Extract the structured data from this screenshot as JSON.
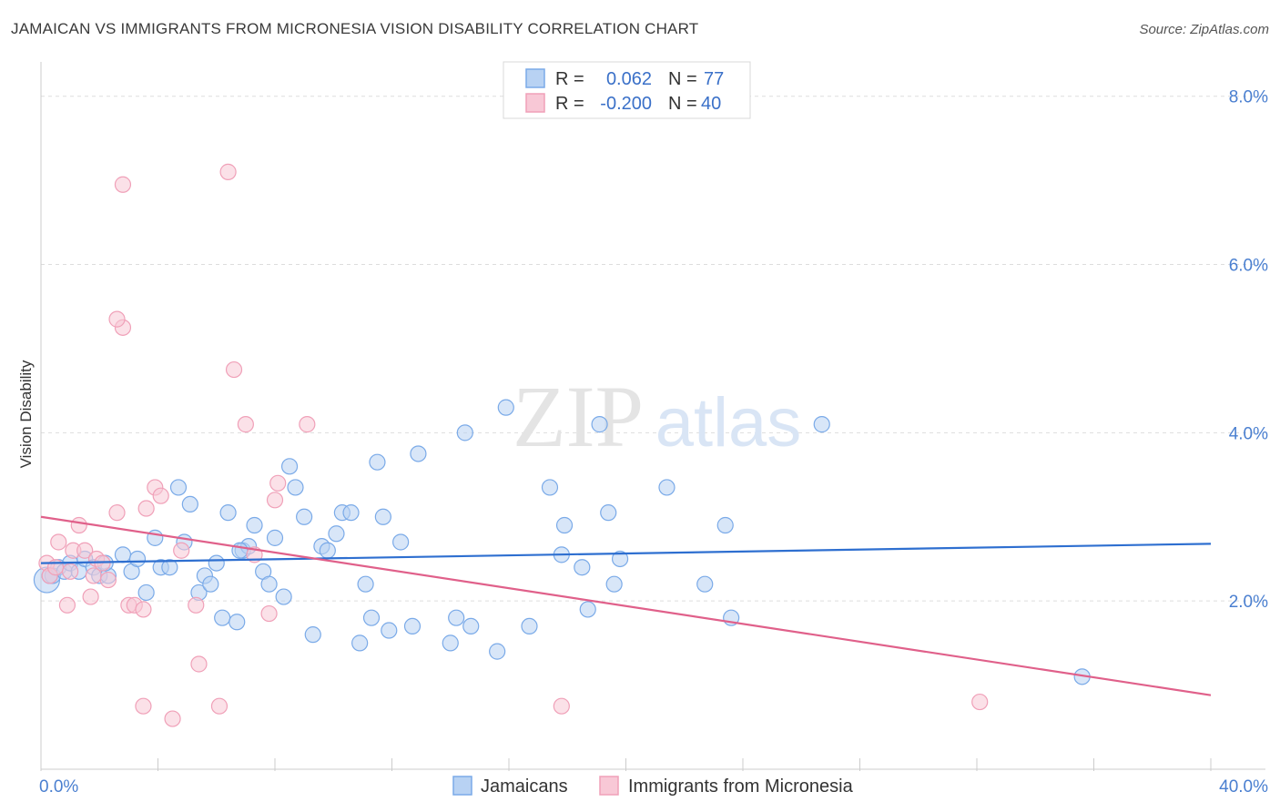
{
  "title": "JAMAICAN VS IMMIGRANTS FROM MICRONESIA VISION DISABILITY CORRELATION CHART",
  "source": "Source: ZipAtlas.com",
  "watermark": {
    "zip": "ZIP",
    "atlas": "atlas"
  },
  "chart_data": {
    "type": "scatter",
    "title": "JAMAICAN VS IMMIGRANTS FROM MICRONESIA VISION DISABILITY CORRELATION CHART",
    "xlabel": "",
    "ylabel": "Vision Disability",
    "xlim": [
      0,
      40
    ],
    "ylim": [
      0,
      8.3
    ],
    "x_tick_labels": [
      "0.0%",
      "40.0%"
    ],
    "y_ticks": [
      2.0,
      4.0,
      6.0,
      8.0
    ],
    "y_tick_labels": [
      "2.0%",
      "4.0%",
      "6.0%",
      "8.0%"
    ],
    "grid": true,
    "legend_placement": "top-center",
    "stats": [
      {
        "r_label": "R =",
        "r_value": "0.062",
        "n_label": "N =",
        "n_value": "77"
      },
      {
        "r_label": "R =",
        "r_value": "-0.200",
        "n_label": "N =",
        "n_value": "40"
      }
    ],
    "series": [
      {
        "name": "Jamaicans",
        "color": "#7aaae8",
        "fill": "#b8d2f3",
        "line_color": "#2e6fd0",
        "trend": [
          [
            0,
            2.45
          ],
          [
            40,
            2.68
          ]
        ],
        "points": [
          [
            0.2,
            2.25
          ],
          [
            0.4,
            2.3
          ],
          [
            0.6,
            2.4
          ],
          [
            0.8,
            2.35
          ],
          [
            1.0,
            2.45
          ],
          [
            1.3,
            2.35
          ],
          [
            1.5,
            2.5
          ],
          [
            1.8,
            2.4
          ],
          [
            2.0,
            2.3
          ],
          [
            2.3,
            2.3
          ],
          [
            2.8,
            2.55
          ],
          [
            3.1,
            2.35
          ],
          [
            3.3,
            2.5
          ],
          [
            3.6,
            2.1
          ],
          [
            3.9,
            2.75
          ],
          [
            4.1,
            2.4
          ],
          [
            4.4,
            2.4
          ],
          [
            4.7,
            3.35
          ],
          [
            4.9,
            2.7
          ],
          [
            5.1,
            3.15
          ],
          [
            5.4,
            2.1
          ],
          [
            5.6,
            2.3
          ],
          [
            5.8,
            2.2
          ],
          [
            6.0,
            2.45
          ],
          [
            6.2,
            1.8
          ],
          [
            6.4,
            3.05
          ],
          [
            6.7,
            1.75
          ],
          [
            6.9,
            2.6
          ],
          [
            7.1,
            2.65
          ],
          [
            7.3,
            2.9
          ],
          [
            7.6,
            2.35
          ],
          [
            7.8,
            2.2
          ],
          [
            8.0,
            2.75
          ],
          [
            8.3,
            2.05
          ],
          [
            8.5,
            3.6
          ],
          [
            8.7,
            3.35
          ],
          [
            9.0,
            3.0
          ],
          [
            9.3,
            1.6
          ],
          [
            9.6,
            2.65
          ],
          [
            9.8,
            2.6
          ],
          [
            10.1,
            2.8
          ],
          [
            10.3,
            3.05
          ],
          [
            10.6,
            3.05
          ],
          [
            10.9,
            1.5
          ],
          [
            11.1,
            2.2
          ],
          [
            11.3,
            1.8
          ],
          [
            11.5,
            3.65
          ],
          [
            11.7,
            3.0
          ],
          [
            11.9,
            1.65
          ],
          [
            12.3,
            2.7
          ],
          [
            12.7,
            1.7
          ],
          [
            12.9,
            3.75
          ],
          [
            14.0,
            1.5
          ],
          [
            14.2,
            1.8
          ],
          [
            14.5,
            4.0
          ],
          [
            14.7,
            1.7
          ],
          [
            15.6,
            1.4
          ],
          [
            15.9,
            4.3
          ],
          [
            16.7,
            1.7
          ],
          [
            17.4,
            3.35
          ],
          [
            17.8,
            2.55
          ],
          [
            17.9,
            2.9
          ],
          [
            18.5,
            2.4
          ],
          [
            18.7,
            1.9
          ],
          [
            19.1,
            4.1
          ],
          [
            19.4,
            3.05
          ],
          [
            19.6,
            2.2
          ],
          [
            19.8,
            2.5
          ],
          [
            21.4,
            3.35
          ],
          [
            22.7,
            2.2
          ],
          [
            23.4,
            2.9
          ],
          [
            23.6,
            1.8
          ],
          [
            26.7,
            4.1
          ],
          [
            35.6,
            1.1
          ],
          [
            0.3,
            2.3
          ],
          [
            2.2,
            2.45
          ],
          [
            6.8,
            2.6
          ]
        ]
      },
      {
        "name": "Immigrants from Micronesia",
        "color": "#f0a0b8",
        "fill": "#f8c8d6",
        "line_color": "#e0608a",
        "trend": [
          [
            0,
            3.0
          ],
          [
            40,
            0.88
          ]
        ],
        "points": [
          [
            0.2,
            2.45
          ],
          [
            0.3,
            2.3
          ],
          [
            0.5,
            2.4
          ],
          [
            0.6,
            2.7
          ],
          [
            0.9,
            1.95
          ],
          [
            1.1,
            2.6
          ],
          [
            1.3,
            2.9
          ],
          [
            1.5,
            2.6
          ],
          [
            1.7,
            2.05
          ],
          [
            1.8,
            2.3
          ],
          [
            1.9,
            2.5
          ],
          [
            2.1,
            2.45
          ],
          [
            2.3,
            2.25
          ],
          [
            2.6,
            3.05
          ],
          [
            2.8,
            5.25
          ],
          [
            2.6,
            5.35
          ],
          [
            3.0,
            1.95
          ],
          [
            3.2,
            1.95
          ],
          [
            3.5,
            1.9
          ],
          [
            3.6,
            3.1
          ],
          [
            3.9,
            3.35
          ],
          [
            4.1,
            3.25
          ],
          [
            4.5,
            0.6
          ],
          [
            4.8,
            2.6
          ],
          [
            5.3,
            1.95
          ],
          [
            5.4,
            1.25
          ],
          [
            6.1,
            0.75
          ],
          [
            6.6,
            4.75
          ],
          [
            7.0,
            4.1
          ],
          [
            7.3,
            2.55
          ],
          [
            7.8,
            1.85
          ],
          [
            8.0,
            3.2
          ],
          [
            8.1,
            3.4
          ],
          [
            9.1,
            4.1
          ],
          [
            2.8,
            6.95
          ],
          [
            6.4,
            7.1
          ],
          [
            3.5,
            0.75
          ],
          [
            17.8,
            0.75
          ],
          [
            32.1,
            0.8
          ],
          [
            1.0,
            2.35
          ]
        ]
      }
    ]
  },
  "legend": {
    "bottom": [
      {
        "label": "Jamaicans"
      },
      {
        "label": "Immigrants from Micronesia"
      }
    ]
  }
}
